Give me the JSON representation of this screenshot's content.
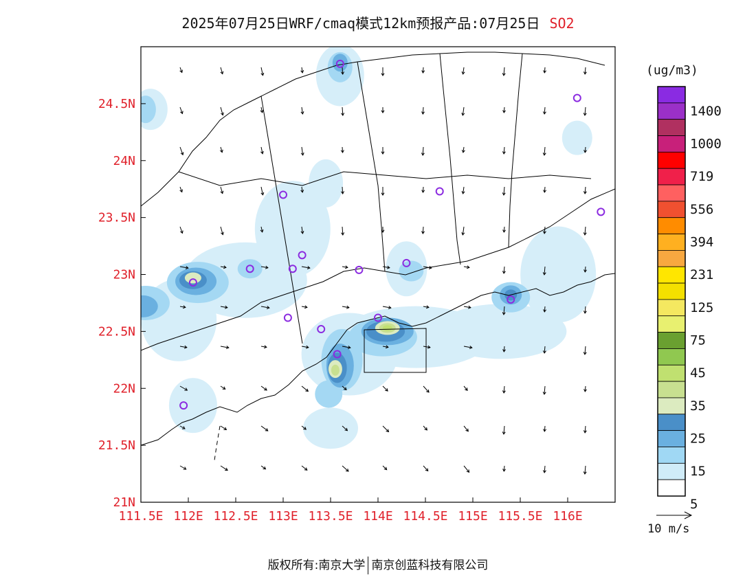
{
  "title": {
    "main": "2025年07月25日WRF/cmaq模式12km预报产品:07月25日",
    "pollutant": "SO2"
  },
  "footer": {
    "left": "版权所有:南京大学",
    "right": "南京创蓝科技有限公司"
  },
  "colorbar": {
    "units": "(ug/m3)",
    "labels": [
      "1400",
      "1000",
      "719",
      "556",
      "394",
      "231",
      "125",
      "75",
      "45",
      "35",
      "25",
      "15",
      "5"
    ],
    "colors": [
      "#8a2be2",
      "#9b30c8",
      "#b03060",
      "#c8207a",
      "#ff0000",
      "#f0204a",
      "#ff6060",
      "#f05030",
      "#ff8c00",
      "#ffb020",
      "#f8a840",
      "#ffe600",
      "#f4e000",
      "#f4e860",
      "#e8f070",
      "#6aa030",
      "#90c850",
      "#c0e070",
      "#c8e090",
      "#dcebc0",
      "#4a8fc8",
      "#6ab0e0",
      "#a0d8f4",
      "#d0ecf8",
      "#ffffff"
    ]
  },
  "wind_reference": "10 m/s",
  "chart_data": {
    "type": "heatmap",
    "title": "2025年07月25日WRF/cmaq模式12km预报产品:07月25日",
    "variable": "SO2",
    "units": "ug/m3",
    "x_ticks": [
      "111.5E",
      "112E",
      "112.5E",
      "113E",
      "113.5E",
      "114E",
      "114.5E",
      "115E",
      "115.5E",
      "116E"
    ],
    "y_ticks": [
      "21N",
      "21.5N",
      "22N",
      "22.5N",
      "23N",
      "23.5N",
      "24N",
      "24.5N"
    ],
    "xlim": [
      111.5,
      116.5
    ],
    "ylim": [
      21.0,
      25.0
    ],
    "stations": [
      {
        "lon": 113.6,
        "lat": 24.85
      },
      {
        "lon": 116.1,
        "lat": 24.55
      },
      {
        "lon": 113.0,
        "lat": 23.7
      },
      {
        "lon": 114.65,
        "lat": 23.73
      },
      {
        "lon": 116.35,
        "lat": 23.55
      },
      {
        "lon": 113.2,
        "lat": 23.17
      },
      {
        "lon": 113.1,
        "lat": 23.05
      },
      {
        "lon": 112.65,
        "lat": 23.05
      },
      {
        "lon": 112.05,
        "lat": 22.93
      },
      {
        "lon": 113.8,
        "lat": 23.04
      },
      {
        "lon": 114.3,
        "lat": 23.1
      },
      {
        "lon": 115.4,
        "lat": 22.78
      },
      {
        "lon": 113.05,
        "lat": 22.62
      },
      {
        "lon": 113.4,
        "lat": 22.52
      },
      {
        "lon": 114.0,
        "lat": 22.62
      },
      {
        "lon": 113.57,
        "lat": 22.3
      },
      {
        "lon": 111.95,
        "lat": 21.85
      }
    ],
    "hotspots": [
      {
        "lon": 112.05,
        "lat": 22.95,
        "max": "25-35"
      },
      {
        "lon": 113.55,
        "lat": 22.17,
        "max": "25-35"
      },
      {
        "lon": 114.1,
        "lat": 22.52,
        "max": "35-45"
      },
      {
        "lon": 111.5,
        "lat": 22.7,
        "max": "15-25"
      },
      {
        "lon": 115.4,
        "lat": 22.8,
        "max": "15-25"
      },
      {
        "lon": 113.6,
        "lat": 24.85,
        "max": "15-25"
      },
      {
        "lon": 111.5,
        "lat": 24.5,
        "max": "15-25"
      }
    ]
  }
}
